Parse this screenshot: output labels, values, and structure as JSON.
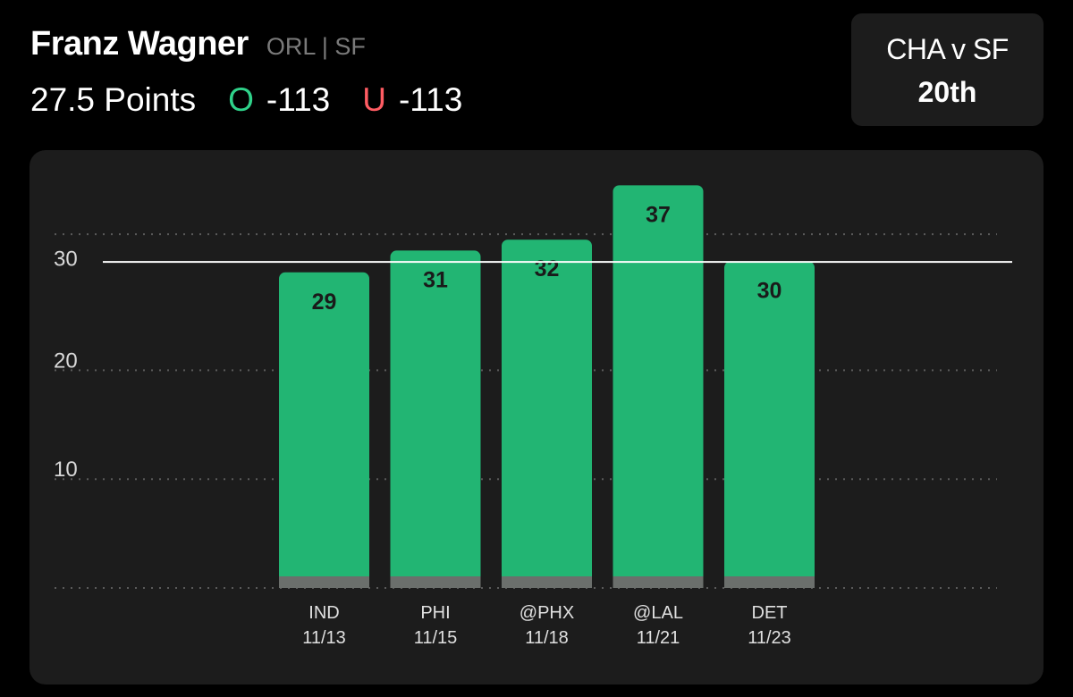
{
  "header": {
    "player_name": "Franz Wagner",
    "team_position": "ORL | SF",
    "stat_line": "27.5 Points",
    "over": {
      "letter": "O",
      "odds": "-113",
      "color": "#2fd28a"
    },
    "under": {
      "letter": "U",
      "odds": "-113",
      "color": "#ff5c63"
    }
  },
  "matchup": {
    "teams": "CHA v SF",
    "rank": "20th"
  },
  "chart_data": {
    "type": "bar",
    "categories": [
      "IND 11/13",
      "PHI 11/15",
      "@PHX 11/18",
      "@LAL 11/21",
      "DET 11/23"
    ],
    "opponents": [
      "IND",
      "PHI",
      "@PHX",
      "@LAL",
      "DET"
    ],
    "dates": [
      "11/13",
      "11/15",
      "11/18",
      "11/21",
      "11/23"
    ],
    "values": [
      29,
      31,
      32,
      37,
      30
    ],
    "yticks": [
      10,
      20,
      30
    ],
    "ylim": [
      0,
      40
    ],
    "reference_line": 30,
    "bar_color": "#22b573",
    "grid": "dotted",
    "title": "",
    "xlabel": "",
    "ylabel": ""
  }
}
